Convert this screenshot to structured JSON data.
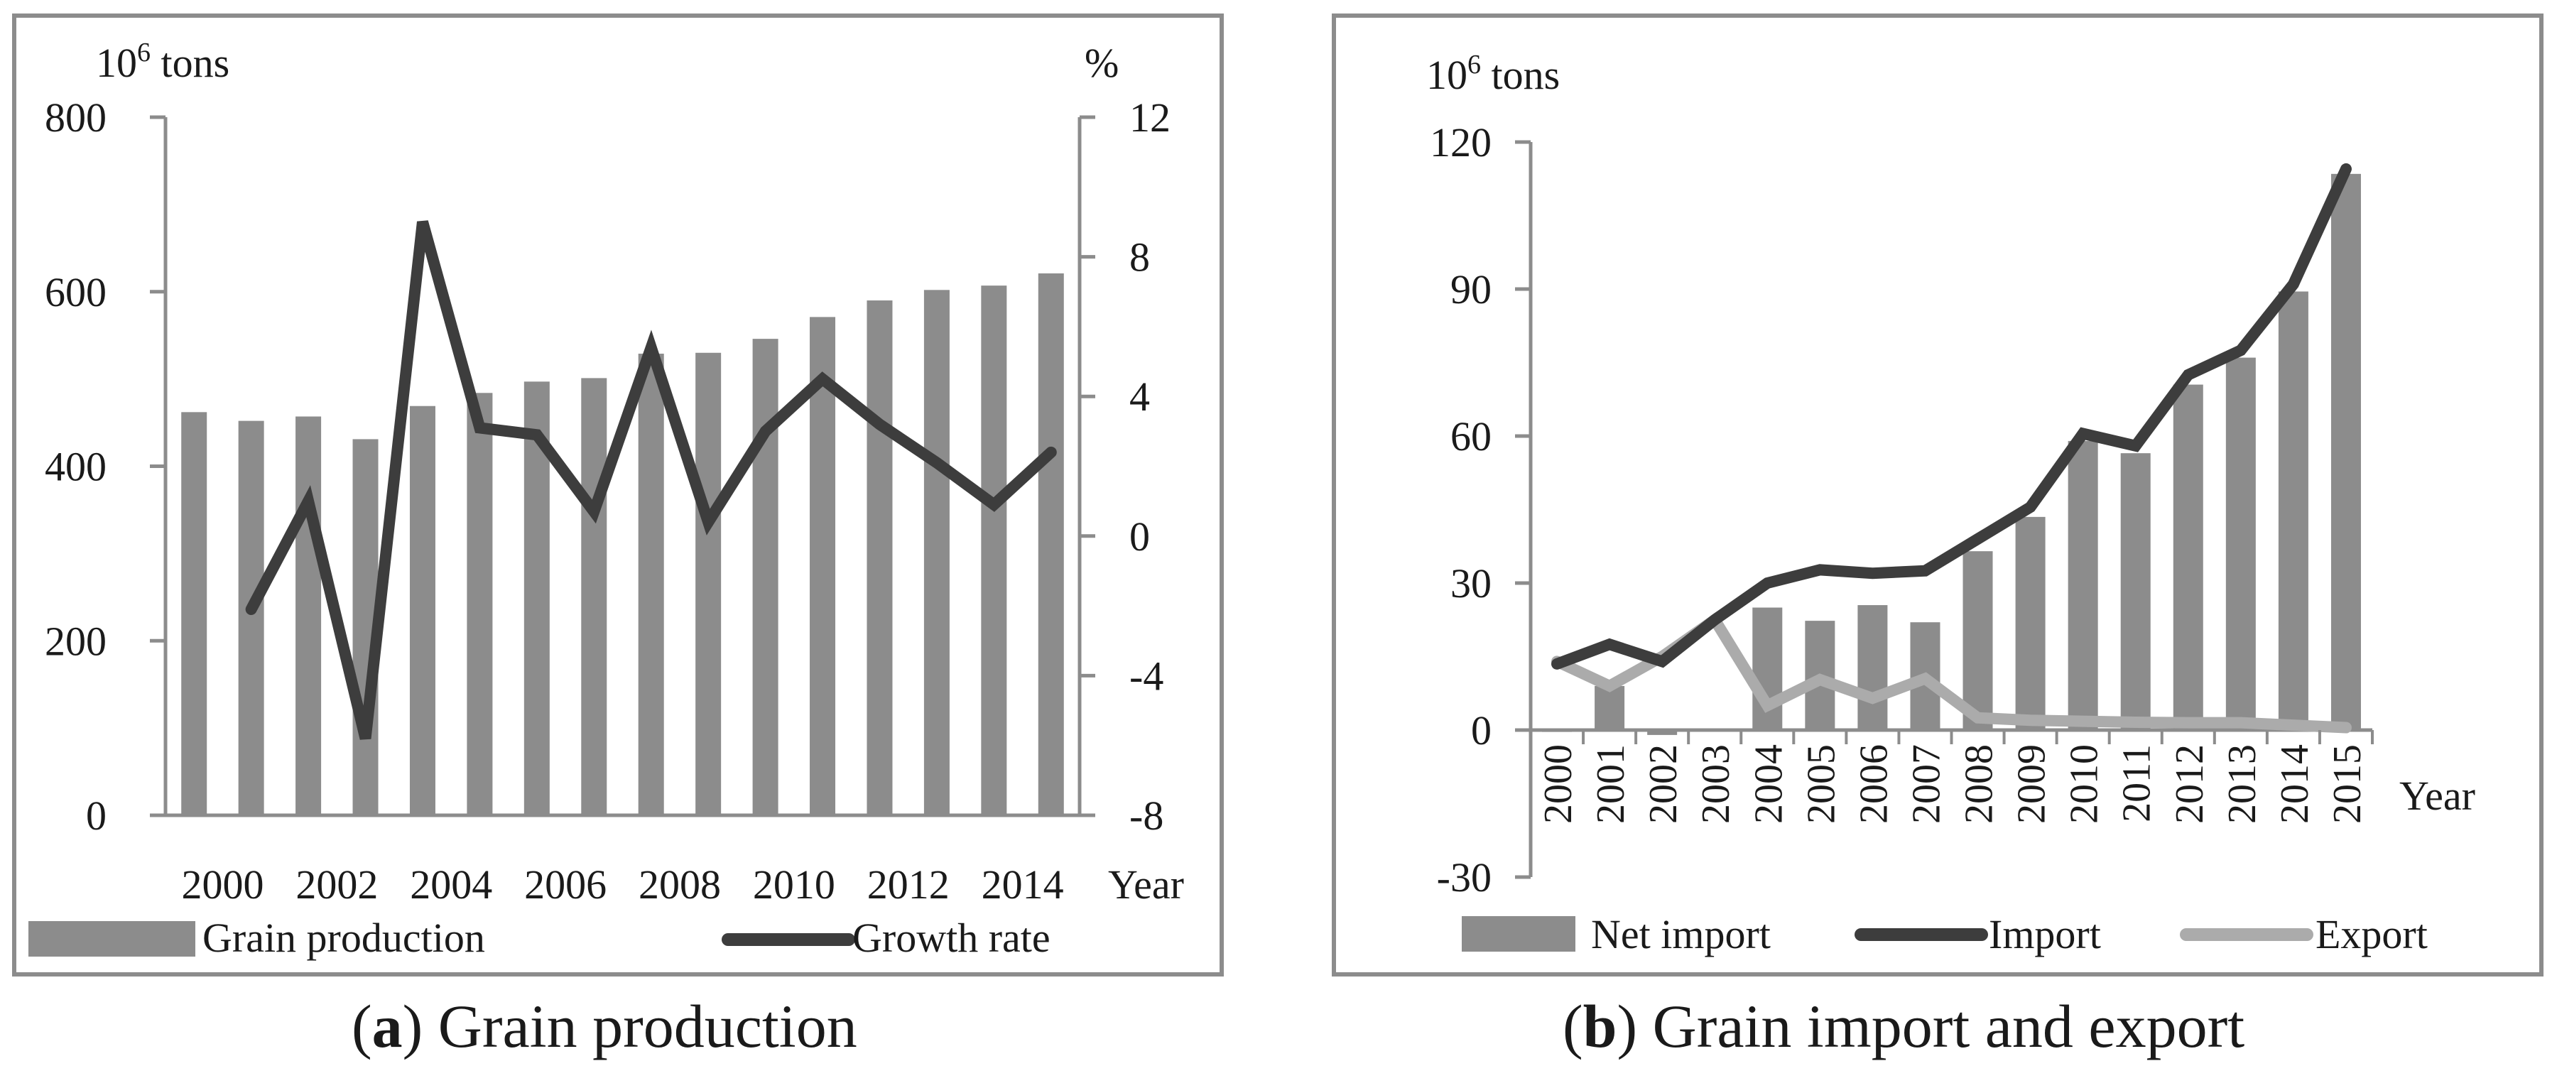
{
  "chart_data": [
    {
      "id": "a",
      "type": "bar+line",
      "caption": {
        "label": "a",
        "text": "Grain production"
      },
      "units_left": "10",
      "units_left_sup": "6",
      "units_left_suffix": " tons",
      "units_right": "%",
      "xlabel": "Year",
      "x": [
        2000,
        2001,
        2002,
        2003,
        2004,
        2005,
        2006,
        2007,
        2008,
        2009,
        2010,
        2011,
        2012,
        2013,
        2014,
        2015
      ],
      "x_tick_labels": [
        "2000",
        "2002",
        "2004",
        "2006",
        "2008",
        "2010",
        "2012",
        "2014"
      ],
      "y_left": {
        "min": 0,
        "max": 800,
        "ticks": [
          "0",
          "200",
          "400",
          "600",
          "800"
        ]
      },
      "y_right": {
        "min": -8,
        "max": 12,
        "ticks": [
          "-8",
          "-4",
          "0",
          "4",
          "8",
          "12"
        ]
      },
      "series": [
        {
          "name": "Grain production",
          "kind": "bar",
          "axis": "left",
          "color": "#8c8c8c",
          "values": [
            462,
            452,
            457,
            431,
            469,
            484,
            497,
            501,
            529,
            530,
            546,
            571,
            590,
            602,
            607,
            621
          ]
        },
        {
          "name": "Growth rate",
          "kind": "line",
          "axis": "right",
          "color": "#3d3d3d",
          "values": [
            null,
            -2.1,
            1.0,
            -5.8,
            9.0,
            3.1,
            2.9,
            0.7,
            5.4,
            0.4,
            3.0,
            4.5,
            3.2,
            2.1,
            0.9,
            2.4
          ]
        }
      ]
    },
    {
      "id": "b",
      "type": "bar+line",
      "caption": {
        "label": "b",
        "text": "Grain import and export"
      },
      "units_left": "10",
      "units_left_sup": "6",
      "units_left_suffix": " tons",
      "xlabel": "Year",
      "x": [
        2000,
        2001,
        2002,
        2003,
        2004,
        2005,
        2006,
        2007,
        2008,
        2009,
        2010,
        2011,
        2012,
        2013,
        2014,
        2015
      ],
      "x_tick_labels": [
        "2000",
        "2001",
        "2002",
        "2003",
        "2004",
        "2005",
        "2006",
        "2007",
        "2008",
        "2009",
        "2010",
        "2011",
        "2012",
        "2013",
        "2014",
        "2015"
      ],
      "y_left": {
        "min": -30,
        "max": 120,
        "ticks": [
          "-30",
          "0",
          "30",
          "60",
          "90",
          "120"
        ]
      },
      "series": [
        {
          "name": "Net import",
          "kind": "bar",
          "color": "#8c8c8c",
          "values": [
            0.2,
            9.0,
            -1.0,
            0.3,
            25.0,
            22.3,
            25.5,
            22.0,
            36.5,
            43.5,
            59.0,
            56.5,
            70.5,
            76.0,
            89.5,
            113.5
          ]
        },
        {
          "name": "Import",
          "kind": "line",
          "color": "#3d3d3d",
          "values": [
            13.5,
            17.5,
            14.0,
            22.5,
            30.0,
            32.7,
            32.0,
            32.5,
            39.0,
            45.5,
            60.5,
            58.0,
            72.5,
            77.5,
            91.0,
            114.5
          ]
        },
        {
          "name": "Export",
          "kind": "line",
          "color": "#ababab",
          "values": [
            14.0,
            9.0,
            15.0,
            22.5,
            5.0,
            10.3,
            6.5,
            10.5,
            2.5,
            2.0,
            1.8,
            1.6,
            1.5,
            1.5,
            1.0,
            0.5
          ]
        }
      ]
    }
  ]
}
